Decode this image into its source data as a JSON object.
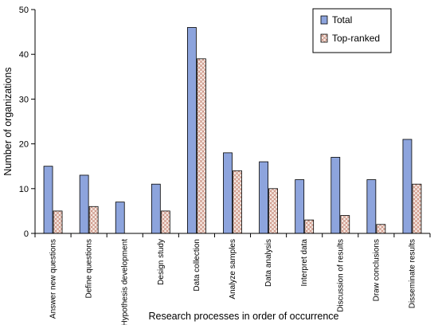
{
  "chart_data": {
    "type": "bar",
    "categories": [
      "Answer new questions",
      "Define questions",
      "Hypothesis development",
      "Design study",
      "Data collection",
      "Analyze samples",
      "Data analysis",
      "Interpret data",
      "Discussion of results",
      "Draw conclusions",
      "Disseminate results"
    ],
    "series": [
      {
        "name": "Total",
        "values": [
          15,
          13,
          7,
          11,
          46,
          18,
          16,
          12,
          17,
          12,
          21
        ],
        "color": "#8da4dd"
      },
      {
        "name": "Top-ranked",
        "values": [
          5,
          6,
          0,
          5,
          39,
          14,
          10,
          3,
          4,
          2,
          11
        ],
        "color": "#f2e6de",
        "pattern": "crosshatch-red"
      }
    ],
    "xlabel": "Research processes in order of occurrence",
    "ylabel": "Number of organizations",
    "ylim": [
      0,
      50
    ],
    "yticks": [
      0,
      10,
      20,
      30,
      40,
      50
    ],
    "grid": false,
    "legend_position": "top-right",
    "category_labels_rotated": true
  }
}
